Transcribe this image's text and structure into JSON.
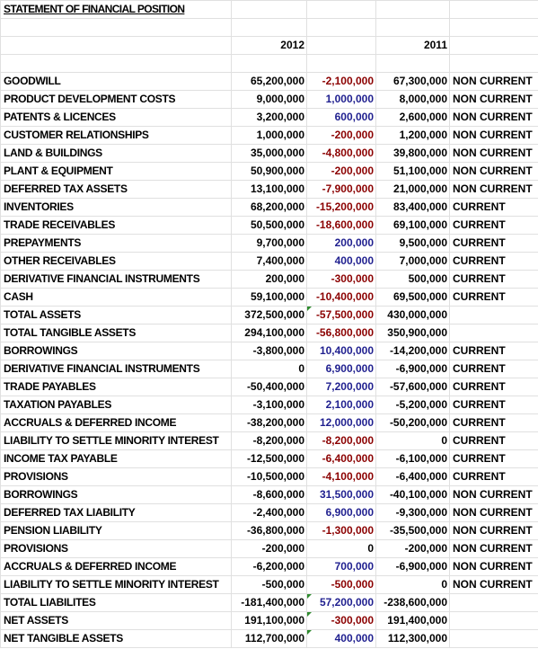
{
  "title": "STATEMENT OF FINANCIAL POSITION",
  "headers": {
    "year_current": "2012",
    "year_prior": "2011"
  },
  "rows": [
    {
      "label": "GOODWILL",
      "current": "65,200,000",
      "change": "-2,100,000",
      "prior": "67,300,000",
      "class": "NON CURRENT"
    },
    {
      "label": "PRODUCT DEVELOPMENT COSTS",
      "current": "9,000,000",
      "change": "1,000,000",
      "prior": "8,000,000",
      "class": "NON CURRENT"
    },
    {
      "label": "PATENTS & LICENCES",
      "current": "3,200,000",
      "change": "600,000",
      "prior": "2,600,000",
      "class": "NON CURRENT"
    },
    {
      "label": "CUSTOMER RELATIONSHIPS",
      "current": "1,000,000",
      "change": "-200,000",
      "prior": "1,200,000",
      "class": "NON CURRENT"
    },
    {
      "label": "LAND & BUILDINGS",
      "current": "35,000,000",
      "change": "-4,800,000",
      "prior": "39,800,000",
      "class": "NON CURRENT"
    },
    {
      "label": "PLANT & EQUIPMENT",
      "current": "50,900,000",
      "change": "-200,000",
      "prior": "51,100,000",
      "class": "NON CURRENT"
    },
    {
      "label": "DEFERRED TAX ASSETS",
      "current": "13,100,000",
      "change": "-7,900,000",
      "prior": "21,000,000",
      "class": "NON CURRENT"
    },
    {
      "label": "INVENTORIES",
      "current": "68,200,000",
      "change": "-15,200,000",
      "prior": "83,400,000",
      "class": "CURRENT"
    },
    {
      "label": "TRADE RECEIVABLES",
      "current": "50,500,000",
      "change": "-18,600,000",
      "prior": "69,100,000",
      "class": "CURRENT"
    },
    {
      "label": "PREPAYMENTS",
      "current": "9,700,000",
      "change": "200,000",
      "prior": "9,500,000",
      "class": "CURRENT"
    },
    {
      "label": "OTHER RECEIVABLES",
      "current": "7,400,000",
      "change": "400,000",
      "prior": "7,000,000",
      "class": "CURRENT"
    },
    {
      "label": "DERIVATIVE FINANCIAL INSTRUMENTS",
      "current": "200,000",
      "change": "-300,000",
      "prior": "500,000",
      "class": "CURRENT"
    },
    {
      "label": "CASH",
      "current": "59,100,000",
      "change": "-10,400,000",
      "prior": "69,500,000",
      "class": "CURRENT"
    },
    {
      "label": "TOTAL ASSETS",
      "current": "372,500,000",
      "change": "-57,500,000",
      "prior": "430,000,000",
      "class": ""
    },
    {
      "label": "TOTAL TANGIBLE ASSETS",
      "current": "294,100,000",
      "change": "-56,800,000",
      "prior": "350,900,000",
      "class": ""
    },
    {
      "label": "BORROWINGS",
      "current": "-3,800,000",
      "change": "10,400,000",
      "prior": "-14,200,000",
      "class": "CURRENT"
    },
    {
      "label": "DERIVATIVE FINANCIAL INSTRUMENTS",
      "current": "0",
      "change": "6,900,000",
      "prior": "-6,900,000",
      "class": "CURRENT"
    },
    {
      "label": "TRADE PAYABLES",
      "current": "-50,400,000",
      "change": "7,200,000",
      "prior": "-57,600,000",
      "class": "CURRENT"
    },
    {
      "label": "TAXATION PAYABLES",
      "current": "-3,100,000",
      "change": "2,100,000",
      "prior": "-5,200,000",
      "class": "CURRENT"
    },
    {
      "label": "ACCRUALS & DEFERRED INCOME",
      "current": "-38,200,000",
      "change": "12,000,000",
      "prior": "-50,200,000",
      "class": "CURRENT"
    },
    {
      "label": "LIABILITY TO SETTLE MINORITY INTEREST",
      "current": "-8,200,000",
      "change": "-8,200,000",
      "prior": "0",
      "class": "CURRENT"
    },
    {
      "label": "INCOME TAX PAYABLE",
      "current": "-12,500,000",
      "change": "-6,400,000",
      "prior": "-6,100,000",
      "class": "CURRENT"
    },
    {
      "label": "PROVISIONS",
      "current": "-10,500,000",
      "change": "-4,100,000",
      "prior": "-6,400,000",
      "class": "CURRENT"
    },
    {
      "label": "BORROWINGS",
      "current": "-8,600,000",
      "change": "31,500,000",
      "prior": "-40,100,000",
      "class": "NON CURRENT"
    },
    {
      "label": "DEFERRED TAX LIABILITY",
      "current": "-2,400,000",
      "change": "6,900,000",
      "prior": "-9,300,000",
      "class": "NON CURRENT"
    },
    {
      "label": "PENSION LIABILITY",
      "current": "-36,800,000",
      "change": "-1,300,000",
      "prior": "-35,500,000",
      "class": "NON CURRENT"
    },
    {
      "label": "PROVISIONS",
      "current": "-200,000",
      "change": "0",
      "prior": "-200,000",
      "class": "NON CURRENT"
    },
    {
      "label": "ACCRUALS & DEFERRED INCOME",
      "current": "-6,200,000",
      "change": "700,000",
      "prior": "-6,900,000",
      "class": "NON CURRENT"
    },
    {
      "label": "LIABILITY TO SETTLE MINORITY INTEREST",
      "current": "-500,000",
      "change": "-500,000",
      "prior": "0",
      "class": "NON CURRENT"
    },
    {
      "label": "TOTAL LIABILITES",
      "current": "-181,400,000",
      "change": "57,200,000",
      "prior": "-238,600,000",
      "class": ""
    },
    {
      "label": "NET ASSETS",
      "current": "191,100,000",
      "change": "-300,000",
      "prior": "191,400,000",
      "class": ""
    },
    {
      "label": "NET TANGIBLE ASSETS",
      "current": "112,700,000",
      "change": "400,000",
      "prior": "112,300,000",
      "class": ""
    }
  ],
  "colors": {
    "negative_change": "#8b0000",
    "positive_change": "#1f1f8f",
    "flag": "#2e8b2e"
  }
}
